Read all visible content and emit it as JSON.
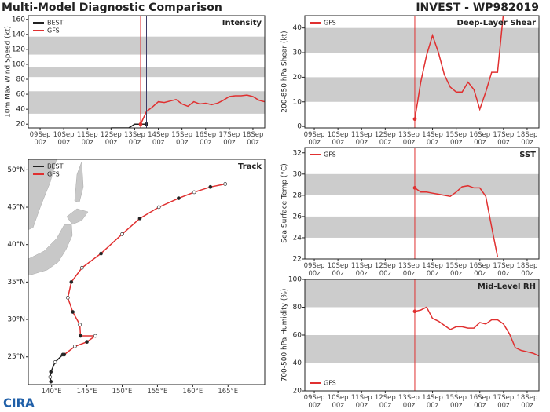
{
  "header": {
    "title": "Multi-Model Diagnostic Comparison",
    "storm": "INVEST - WP982019",
    "logo": "CIRA"
  },
  "chart_data": [
    {
      "type": "line",
      "title": "Intensity",
      "ylabel": "10m Max Wind Speed (kt)",
      "xlim": [
        8.5,
        18.5
      ],
      "ylim": [
        15,
        165
      ],
      "legend": "upper left",
      "xticks": [
        {
          "value": 9,
          "label": "09Sep\n00z"
        },
        {
          "value": 10,
          "label": "10Sep\n00z"
        },
        {
          "value": 11,
          "label": "11Sep\n00z"
        },
        {
          "value": 12,
          "label": "12Sep\n00z"
        },
        {
          "value": 13,
          "label": "13Sep\n00z"
        },
        {
          "value": 14,
          "label": "14Sep\n00z"
        },
        {
          "value": 15,
          "label": "15Sep\n00z"
        },
        {
          "value": 16,
          "label": "16Sep\n00z"
        },
        {
          "value": 17,
          "label": "17Sep\n00z"
        },
        {
          "value": 18,
          "label": "18Sep\n00z"
        }
      ],
      "yticks": [
        20,
        40,
        60,
        80,
        100,
        120,
        140,
        160
      ],
      "bands": [
        [
          34,
          64
        ],
        [
          83,
          96
        ],
        [
          113,
          137
        ]
      ],
      "band_color": "#cccccc",
      "vlines": [
        {
          "x": 13.25,
          "color": "#e03030"
        },
        {
          "x": 13.5,
          "color": "#3a3a66"
        }
      ],
      "x": [
        12,
        12.25,
        12.5,
        12.75,
        13,
        13.25,
        13.5,
        13.75,
        14,
        14.25,
        14.5,
        14.75,
        15,
        15.25,
        15.5,
        15.75,
        16,
        16.25,
        16.5,
        16.75,
        17,
        17.25,
        17.5,
        17.75,
        18,
        18.25,
        18.5
      ],
      "series": [
        {
          "name": "BEST",
          "color": "#222222",
          "marker": "end",
          "values": [
            15,
            15,
            15,
            15,
            20,
            20,
            20,
            null,
            null,
            null,
            null,
            null,
            null,
            null,
            null,
            null,
            null,
            null,
            null,
            null,
            null,
            null,
            null,
            null,
            null,
            null,
            null
          ]
        },
        {
          "name": "GFS",
          "color": "#e03030",
          "marker": "start",
          "values": [
            null,
            null,
            null,
            null,
            null,
            20,
            37,
            43,
            50,
            49,
            51,
            53,
            47,
            44,
            50,
            47,
            48,
            46,
            48,
            52,
            57,
            58,
            58,
            59,
            57,
            52,
            50
          ]
        }
      ]
    },
    {
      "type": "track",
      "title": "Track",
      "xlim": [
        136.7,
        170.2
      ],
      "ylim": [
        21.3,
        51.4
      ],
      "legend": "upper left",
      "xticks": [
        {
          "value": 140,
          "label": "140°E"
        },
        {
          "value": 145,
          "label": "145°E"
        },
        {
          "value": 150,
          "label": "150°E"
        },
        {
          "value": 155,
          "label": "155°E"
        },
        {
          "value": 160,
          "label": "160°E"
        },
        {
          "value": 165,
          "label": "165°E"
        }
      ],
      "yticks": [
        {
          "value": 25,
          "label": "25°N"
        },
        {
          "value": 30,
          "label": "30°N"
        },
        {
          "value": 35,
          "label": "35°N"
        },
        {
          "value": 40,
          "label": "40°N"
        },
        {
          "value": 45,
          "label": "45°N"
        },
        {
          "value": 50,
          "label": "50°N"
        }
      ],
      "series": [
        {
          "name": "BEST",
          "color": "#222222",
          "x": [
            139.9,
            139.8,
            139.9,
            140.5,
            141.6
          ],
          "values": [
            21.7,
            22.3,
            23.0,
            24.3,
            25.3
          ]
        },
        {
          "name": "GFS",
          "color": "#e03030",
          "x": [
            141.8,
            143.3,
            145.0,
            146.2,
            144.1,
            144.0,
            143.0,
            142.3,
            142.8,
            144.3,
            147.0,
            150.0,
            152.5,
            155.2,
            158.0,
            160.2,
            162.5,
            164.6
          ],
          "values": [
            25.3,
            26.4,
            27.0,
            27.8,
            27.8,
            29.3,
            31.0,
            32.9,
            35.0,
            36.9,
            38.8,
            41.4,
            43.5,
            45.0,
            46.2,
            47.0,
            47.7,
            48.1
          ]
        }
      ]
    },
    {
      "type": "line",
      "title": "Deep-Layer Shear",
      "ylabel": "200-850 hPa Shear (kt)",
      "xlim": [
        8.6,
        18.5
      ],
      "ylim": [
        -0.6,
        45
      ],
      "legend": "upper left",
      "xticks": [
        {
          "value": 9,
          "label": "09Sep\n00z"
        },
        {
          "value": 10,
          "label": "10Sep\n00z"
        },
        {
          "value": 11,
          "label": "11Sep\n00z"
        },
        {
          "value": 12,
          "label": "12Sep\n00z"
        },
        {
          "value": 13,
          "label": "13Sep\n00z"
        },
        {
          "value": 14,
          "label": "14Sep\n00z"
        },
        {
          "value": 15,
          "label": "15Sep\n00z"
        },
        {
          "value": 16,
          "label": "16Sep\n00z"
        },
        {
          "value": 17,
          "label": "17Sep\n00z"
        },
        {
          "value": 18,
          "label": "18Sep\n00z"
        }
      ],
      "yticks": [
        0,
        10,
        20,
        30,
        40
      ],
      "bands": [
        [
          10,
          20
        ],
        [
          30,
          40
        ]
      ],
      "band_color": "#cccccc",
      "vlines": [
        {
          "x": 13.25,
          "color": "#e03030"
        }
      ],
      "x": [
        13.25,
        13.5,
        13.75,
        14,
        14.25,
        14.5,
        14.75,
        15,
        15.25,
        15.5,
        15.75,
        16,
        16.25,
        16.5,
        16.75,
        17,
        17.25,
        17.5,
        17.75,
        18,
        18.25,
        18.5
      ],
      "series": [
        {
          "name": "GFS",
          "color": "#e03030",
          "marker": "start",
          "values": [
            3,
            18,
            29,
            37,
            30,
            21,
            16,
            14,
            14,
            18,
            15,
            7,
            14,
            22,
            22,
            46,
            null,
            null,
            null,
            null,
            null,
            null
          ]
        }
      ]
    },
    {
      "type": "line",
      "title": "SST",
      "ylabel": "Sea Surface Temp (°C)",
      "xlim": [
        8.6,
        18.5
      ],
      "ylim": [
        22,
        32.5
      ],
      "legend": "upper left",
      "xticks": [
        {
          "value": 9,
          "label": "09Sep\n00z"
        },
        {
          "value": 10,
          "label": "10Sep\n00z"
        },
        {
          "value": 11,
          "label": "11Sep\n00z"
        },
        {
          "value": 12,
          "label": "12Sep\n00z"
        },
        {
          "value": 13,
          "label": "13Sep\n00z"
        },
        {
          "value": 14,
          "label": "14Sep\n00z"
        },
        {
          "value": 15,
          "label": "15Sep\n00z"
        },
        {
          "value": 16,
          "label": "16Sep\n00z"
        },
        {
          "value": 17,
          "label": "17Sep\n00z"
        },
        {
          "value": 18,
          "label": "18Sep\n00z"
        }
      ],
      "yticks": [
        22,
        24,
        26,
        28,
        30,
        32
      ],
      "bands": [
        [
          24,
          26
        ],
        [
          28,
          30
        ]
      ],
      "band_color": "#cccccc",
      "vlines": [
        {
          "x": 13.25,
          "color": "#e03030"
        }
      ],
      "x": [
        13.25,
        13.5,
        13.75,
        14,
        14.25,
        14.5,
        14.75,
        15,
        15.25,
        15.5,
        15.75,
        16,
        16.25,
        16.5,
        16.75,
        17,
        17.25,
        17.5,
        17.75,
        18,
        18.25,
        18.5
      ],
      "series": [
        {
          "name": "GFS",
          "color": "#e03030",
          "marker": "start",
          "values": [
            28.7,
            28.3,
            28.3,
            28.2,
            28.1,
            28.0,
            27.9,
            28.3,
            28.8,
            28.9,
            28.7,
            28.7,
            27.9,
            25.0,
            22.2,
            null,
            null,
            null,
            null,
            null,
            null,
            null
          ]
        }
      ]
    },
    {
      "type": "line",
      "title": "Mid-Level RH",
      "ylabel": "700-500 hPa Humidity (%)",
      "xlim": [
        8.6,
        18.5
      ],
      "ylim": [
        20,
        100
      ],
      "legend": "lower left",
      "xticks": [
        {
          "value": 9,
          "label": "09Sep\n00z"
        },
        {
          "value": 10,
          "label": "10Sep\n00z"
        },
        {
          "value": 11,
          "label": "11Sep\n00z"
        },
        {
          "value": 12,
          "label": "12Sep\n00z"
        },
        {
          "value": 13,
          "label": "13Sep\n00z"
        },
        {
          "value": 14,
          "label": "14Sep\n00z"
        },
        {
          "value": 15,
          "label": "15Sep\n00z"
        },
        {
          "value": 16,
          "label": "16Sep\n00z"
        },
        {
          "value": 17,
          "label": "17Sep\n00z"
        },
        {
          "value": 18,
          "label": "18Sep\n00z"
        }
      ],
      "yticks": [
        20,
        40,
        60,
        80,
        100
      ],
      "bands": [
        [
          40,
          60
        ],
        [
          80,
          100
        ]
      ],
      "band_color": "#cccccc",
      "vlines": [
        {
          "x": 13.25,
          "color": "#e03030"
        }
      ],
      "x": [
        13.25,
        13.5,
        13.75,
        14,
        14.25,
        14.5,
        14.75,
        15,
        15.25,
        15.5,
        15.75,
        16,
        16.25,
        16.5,
        16.75,
        17,
        17.25,
        17.5,
        17.75,
        18,
        18.25,
        18.5
      ],
      "series": [
        {
          "name": "GFS",
          "color": "#e03030",
          "marker": "start",
          "values": [
            77,
            78,
            80,
            72,
            70,
            67,
            64,
            66,
            66,
            65,
            65,
            69,
            68,
            71,
            71,
            68,
            61,
            51,
            49,
            48,
            47,
            45
          ]
        }
      ]
    }
  ]
}
